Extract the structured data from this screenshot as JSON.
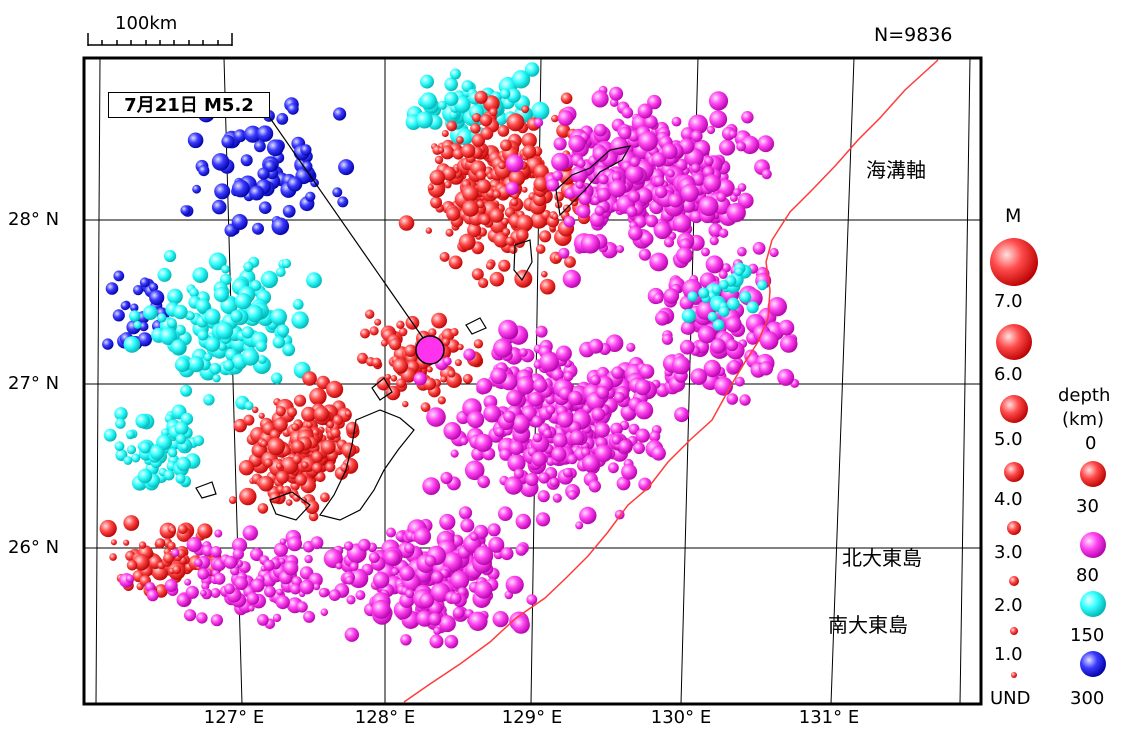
{
  "header": {
    "scale_label": "100km",
    "count_label": "N=9836"
  },
  "axes": {
    "x_ticks": [
      "127° E",
      "128° E",
      "129° E",
      "130° E",
      "131° E"
    ],
    "y_ticks": [
      "28° N",
      "27° N",
      "26° N"
    ]
  },
  "annotations": {
    "event_label": "7月21日 M5.2",
    "trench_label": "海溝軸",
    "island_north": "北大東島",
    "island_south": "南大東島"
  },
  "legend_magnitude": {
    "title": "M",
    "labels": [
      "7.0",
      "6.0",
      "5.0",
      "4.0",
      "3.0",
      "2.0",
      "1.0",
      "UND"
    ]
  },
  "legend_depth": {
    "title_line1": "depth",
    "title_line2": "(km)",
    "labels": [
      "0",
      "30",
      "80",
      "150",
      "300"
    ],
    "colors": [
      "#ff3b3b",
      "#ff3b3b",
      "#ff3cf2",
      "#33ffff",
      "#2b2bff"
    ]
  },
  "colors": {
    "shallow": "#ff3b3b",
    "mid": "#ff3cf2",
    "deep": "#33ffff",
    "very_deep": "#2b2bff",
    "trench": "#ff3b3b",
    "event": "#ff33ee"
  }
}
